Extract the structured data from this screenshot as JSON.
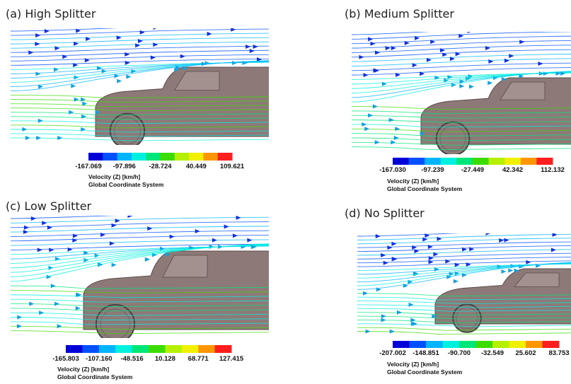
{
  "panels": [
    {
      "title": "(a) High Splitter",
      "colorbar_labels": [
        "-167.069",
        "-97.896",
        "-28.724",
        "40.449",
        "109.621"
      ],
      "legend_title": "Velocity (Z) [km/h]",
      "legend_subtitle": "Global Coordinate System"
    },
    {
      "title": "(b) Medium Splitter",
      "colorbar_labels": [
        "-167.030",
        "-97.239",
        "-27.449",
        "42.342",
        "112.132"
      ],
      "legend_title": "Velocity (Z) [km/h]",
      "legend_subtitle": "Global Coordinate System"
    },
    {
      "title": "(c) Low Splitter",
      "colorbar_labels": [
        "-165.803",
        "-107.160",
        "-48.516",
        "10.128",
        "68.771",
        "127.415"
      ],
      "legend_title": "Velocity (Z) [km/h]",
      "legend_subtitle": "Global Coordinate System"
    },
    {
      "title": "(d) No Splitter",
      "colorbar_labels": [
        "-207.002",
        "-148.851",
        "-90.700",
        "-32.549",
        "25.602",
        "83.753"
      ],
      "legend_title": "Velocity (Z) [km/h]",
      "legend_subtitle": "Global Coordinate System"
    }
  ]
}
